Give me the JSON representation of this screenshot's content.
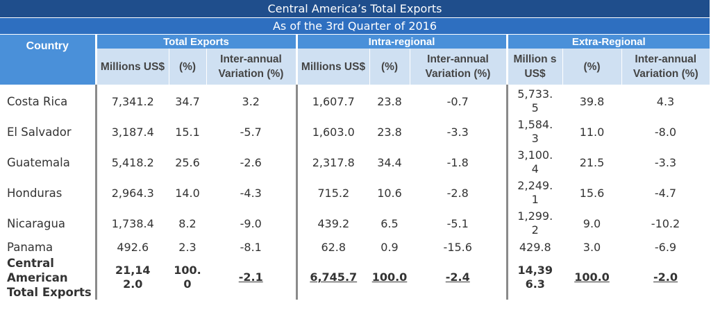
{
  "title": "Central America’s Total Exports",
  "subtitle": "As of the 3rd Quarter of 2016",
  "headers": {
    "country": "Country",
    "groups": [
      "Total Exports",
      "Intra-regional",
      "Extra-Regional"
    ],
    "sub": [
      [
        "Millions US$",
        "(%)",
        "Inter-annual Variation (%)"
      ],
      [
        "Millions US$",
        "(%)",
        "Inter-annual Variation (%)"
      ],
      [
        "Million s US$",
        "(%)",
        "Inter-annual Variation (%)"
      ]
    ]
  },
  "rows": [
    {
      "country": "Costa Rica",
      "values": [
        "7,341.2",
        "34.7",
        "3.2",
        "1,607.7",
        "23.8",
        "-0.7",
        "5,733.5",
        "39.8",
        "4.3"
      ]
    },
    {
      "country": "El Salvador",
      "values": [
        "3,187.4",
        "15.1",
        "-5.7",
        "1,603.0",
        "23.8",
        "-3.3",
        "1,584.3",
        "11.0",
        "-8.0"
      ]
    },
    {
      "country": "Guatemala",
      "values": [
        "5,418.2",
        "25.6",
        "-2.6",
        "2,317.8",
        "34.4",
        "-1.8",
        "3,100.4",
        "21.5",
        "-3.3"
      ]
    },
    {
      "country": "Honduras",
      "values": [
        "2,964.3",
        "14.0",
        "-4.3",
        "715.2",
        "10.6",
        "-2.8",
        "2,249.1",
        "15.6",
        "-4.7"
      ]
    },
    {
      "country": "Nicaragua",
      "values": [
        "1,738.4",
        "8.2",
        "-9.0",
        "439.2",
        "6.5",
        "-5.1",
        "1,299.2",
        "9.0",
        "-10.2"
      ]
    },
    {
      "country": "Panama",
      "values": [
        "492.6",
        "2.3",
        "-8.1",
        "62.8",
        "0.9",
        "-15.6",
        "429.8",
        "3.0",
        "-6.9"
      ]
    }
  ],
  "total": {
    "country": "Central American Total Exports",
    "values": [
      "21,142.0",
      "100.0",
      "-2.1",
      "6,745.7",
      "100.0",
      "-2.4",
      "14,396.3",
      "100.0",
      "-2.0"
    ]
  },
  "colors": {
    "title_bg": "#1f4e8c",
    "subtitle_bg": "#2e6fc0",
    "header_bg": "#4a90d9",
    "subheader_bg": "#cfe0f2"
  }
}
